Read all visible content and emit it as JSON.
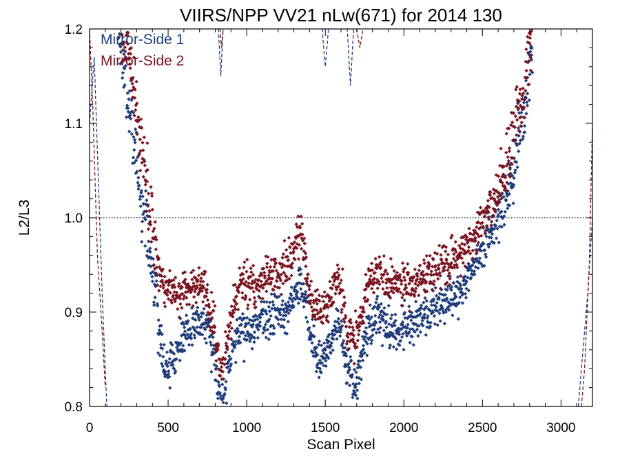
{
  "chart_data": {
    "type": "scatter",
    "title": "VIIRS/NPP VV21 nLw(671) for 2014 130",
    "xlabel": "Scan Pixel",
    "ylabel": "L2/L3",
    "xlim": [
      0,
      3200
    ],
    "ylim": [
      0.8,
      1.2
    ],
    "x_ticks": [
      0,
      500,
      1000,
      1500,
      2000,
      2500,
      3000
    ],
    "y_ticks": [
      0.8,
      0.9,
      1.0,
      1.1,
      1.2
    ],
    "x_tick_labels": [
      "0",
      "500",
      "1000",
      "1500",
      "2000",
      "2500",
      "3000"
    ],
    "y_tick_labels": [
      "0.8",
      "0.9",
      "1.0",
      "1.1",
      "1.2"
    ],
    "reference_line": {
      "y": 1.0,
      "style": "dotted"
    },
    "legend_position": "top-left",
    "colors": {
      "mirror_side_1": "#1f3d7a",
      "mirror_side_2": "#7a1520"
    },
    "series": [
      {
        "name": "Mirror-Side 1",
        "marker": "diamond",
        "color": "#1f3d7a",
        "dashed_trend": [
          [
            0,
            1.1
          ],
          [
            30,
            1.17
          ],
          [
            60,
            1.02
          ],
          [
            80,
            0.92
          ],
          [
            100,
            0.84
          ],
          [
            110,
            0.8
          ],
          [
            820,
            1.2
          ],
          [
            835,
            1.15
          ],
          [
            850,
            1.2
          ],
          [
            1480,
            1.2
          ],
          [
            1500,
            1.16
          ],
          [
            1520,
            1.2
          ],
          [
            1640,
            1.2
          ],
          [
            1660,
            1.14
          ],
          [
            1680,
            1.2
          ],
          [
            3110,
            0.8
          ],
          [
            3140,
            0.86
          ],
          [
            3170,
            0.92
          ],
          [
            3200,
            1.0
          ]
        ],
        "envelope": [
          [
            180,
            1.2
          ],
          [
            240,
            1.14
          ],
          [
            300,
            1.06
          ],
          [
            360,
            0.99
          ],
          [
            400,
            0.94
          ],
          [
            440,
            0.89
          ],
          [
            480,
            0.84
          ],
          [
            520,
            0.84
          ],
          [
            560,
            0.86
          ],
          [
            620,
            0.88
          ],
          [
            680,
            0.89
          ],
          [
            740,
            0.89
          ],
          [
            790,
            0.86
          ],
          [
            820,
            0.81
          ],
          [
            850,
            0.8
          ],
          [
            880,
            0.84
          ],
          [
            920,
            0.87
          ],
          [
            970,
            0.88
          ],
          [
            1020,
            0.88
          ],
          [
            1080,
            0.89
          ],
          [
            1140,
            0.89
          ],
          [
            1200,
            0.9
          ],
          [
            1260,
            0.9
          ],
          [
            1310,
            0.92
          ],
          [
            1340,
            0.93
          ],
          [
            1370,
            0.92
          ],
          [
            1400,
            0.88
          ],
          [
            1440,
            0.86
          ],
          [
            1480,
            0.85
          ],
          [
            1520,
            0.86
          ],
          [
            1570,
            0.88
          ],
          [
            1600,
            0.88
          ],
          [
            1640,
            0.84
          ],
          [
            1680,
            0.82
          ],
          [
            1720,
            0.84
          ],
          [
            1770,
            0.88
          ],
          [
            1830,
            0.9
          ],
          [
            1900,
            0.88
          ],
          [
            1960,
            0.88
          ],
          [
            2050,
            0.89
          ],
          [
            2150,
            0.9
          ],
          [
            2250,
            0.91
          ],
          [
            2350,
            0.92
          ],
          [
            2450,
            0.95
          ],
          [
            2550,
            0.98
          ],
          [
            2650,
            1.02
          ],
          [
            2720,
            1.07
          ],
          [
            2780,
            1.13
          ],
          [
            2820,
            1.19
          ]
        ]
      },
      {
        "name": "Mirror-Side 2",
        "marker": "diamond",
        "color": "#7a1520",
        "dashed_trend": [
          [
            0,
            1.2
          ],
          [
            20,
            1.12
          ],
          [
            50,
            0.96
          ],
          [
            80,
            0.88
          ],
          [
            100,
            0.82
          ],
          [
            830,
            1.2
          ],
          [
            840,
            1.18
          ],
          [
            850,
            1.2
          ],
          [
            1700,
            1.2
          ],
          [
            1720,
            1.18
          ],
          [
            1740,
            1.2
          ],
          [
            3130,
            0.8
          ],
          [
            3150,
            0.84
          ],
          [
            3180,
            0.95
          ],
          [
            3200,
            1.1
          ]
        ],
        "envelope": [
          [
            200,
            1.2
          ],
          [
            250,
            1.18
          ],
          [
            300,
            1.12
          ],
          [
            360,
            1.04
          ],
          [
            400,
            0.99
          ],
          [
            440,
            0.95
          ],
          [
            480,
            0.92
          ],
          [
            520,
            0.93
          ],
          [
            560,
            0.92
          ],
          [
            620,
            0.92
          ],
          [
            680,
            0.93
          ],
          [
            740,
            0.92
          ],
          [
            790,
            0.89
          ],
          [
            820,
            0.85
          ],
          [
            850,
            0.84
          ],
          [
            880,
            0.87
          ],
          [
            920,
            0.91
          ],
          [
            970,
            0.93
          ],
          [
            1020,
            0.93
          ],
          [
            1080,
            0.93
          ],
          [
            1140,
            0.94
          ],
          [
            1200,
            0.94
          ],
          [
            1260,
            0.95
          ],
          [
            1310,
            0.97
          ],
          [
            1340,
            0.99
          ],
          [
            1370,
            0.96
          ],
          [
            1400,
            0.92
          ],
          [
            1440,
            0.91
          ],
          [
            1480,
            0.9
          ],
          [
            1520,
            0.91
          ],
          [
            1570,
            0.93
          ],
          [
            1600,
            0.93
          ],
          [
            1640,
            0.88
          ],
          [
            1680,
            0.87
          ],
          [
            1720,
            0.89
          ],
          [
            1770,
            0.93
          ],
          [
            1830,
            0.94
          ],
          [
            1900,
            0.93
          ],
          [
            1960,
            0.93
          ],
          [
            2050,
            0.93
          ],
          [
            2150,
            0.94
          ],
          [
            2250,
            0.95
          ],
          [
            2350,
            0.96
          ],
          [
            2450,
            0.98
          ],
          [
            2550,
            1.01
          ],
          [
            2650,
            1.05
          ],
          [
            2720,
            1.1
          ],
          [
            2780,
            1.15
          ],
          [
            2820,
            1.2
          ]
        ]
      }
    ]
  }
}
